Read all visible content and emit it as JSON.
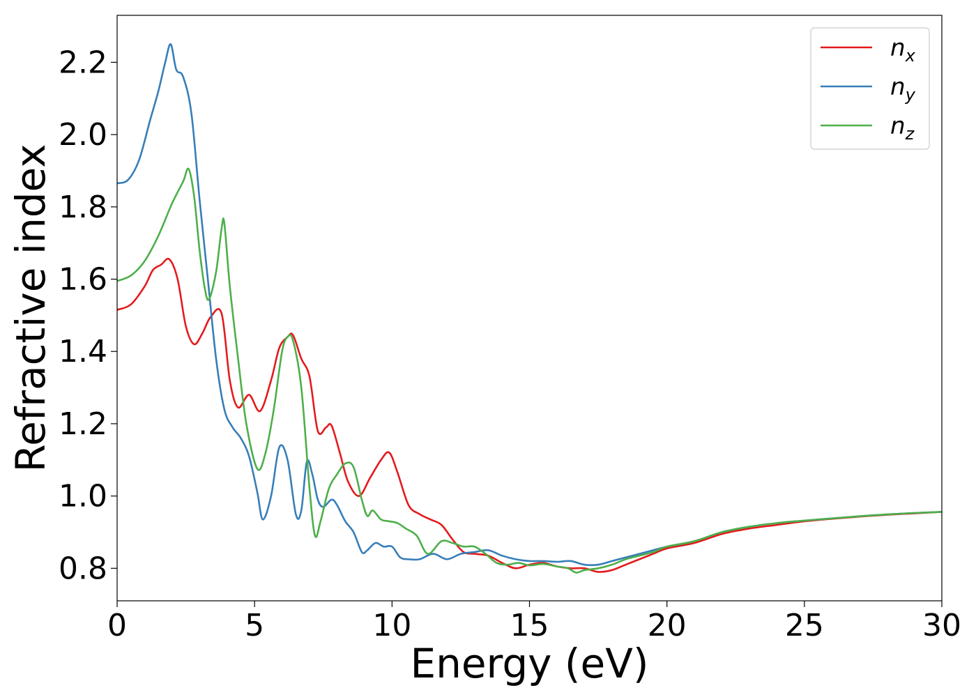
{
  "chart_data": {
    "type": "line",
    "title": "",
    "xlabel": "Energy (eV)",
    "ylabel": "Refractive index",
    "xlim": [
      0,
      30
    ],
    "ylim": [
      0.71,
      2.33
    ],
    "xticks": [
      0,
      5,
      10,
      15,
      20,
      25,
      30
    ],
    "yticks": [
      0.8,
      1.0,
      1.2,
      1.4,
      1.6,
      1.8,
      2.0,
      2.2
    ],
    "xtick_labels": [
      "0",
      "5",
      "10",
      "15",
      "20",
      "25",
      "30"
    ],
    "ytick_labels": [
      "0.8",
      "1.0",
      "1.2",
      "1.4",
      "1.6",
      "1.8",
      "2.0",
      "2.2"
    ],
    "grid": false,
    "legend_position": "top-right",
    "series": [
      {
        "name": "n_x",
        "legend_base": "n",
        "legend_sub": "x",
        "color": "#e41a1c",
        "x": [
          0,
          0.5,
          1.0,
          1.3,
          1.6,
          1.9,
          2.2,
          2.5,
          2.8,
          3.1,
          3.4,
          3.8,
          4.1,
          4.4,
          4.8,
          5.2,
          5.6,
          5.9,
          6.2,
          6.4,
          6.7,
          7.0,
          7.3,
          7.6,
          7.8,
          8.1,
          8.4,
          8.8,
          9.2,
          9.6,
          9.9,
          10.2,
          10.6,
          11.0,
          11.4,
          11.8,
          12.2,
          12.6,
          13.0,
          13.5,
          14.0,
          14.5,
          15.0,
          15.5,
          16.0,
          16.5,
          17.0,
          17.5,
          18.0,
          18.5,
          19.0,
          19.5,
          20.0,
          21.0,
          22.0,
          23.0,
          24.0,
          25.0,
          26.0,
          27.0,
          28.0,
          29.0,
          30.0
        ],
        "y": [
          1.515,
          1.53,
          1.58,
          1.625,
          1.64,
          1.655,
          1.6,
          1.47,
          1.42,
          1.45,
          1.495,
          1.505,
          1.32,
          1.245,
          1.28,
          1.235,
          1.32,
          1.41,
          1.44,
          1.445,
          1.38,
          1.33,
          1.18,
          1.19,
          1.195,
          1.12,
          1.04,
          1.0,
          1.05,
          1.1,
          1.12,
          1.065,
          0.975,
          0.95,
          0.935,
          0.92,
          0.88,
          0.845,
          0.84,
          0.835,
          0.815,
          0.8,
          0.81,
          0.815,
          0.805,
          0.8,
          0.8,
          0.79,
          0.795,
          0.81,
          0.825,
          0.84,
          0.855,
          0.87,
          0.895,
          0.91,
          0.92,
          0.93,
          0.937,
          0.943,
          0.948,
          0.952,
          0.956
        ]
      },
      {
        "name": "n_y",
        "legend_base": "n",
        "legend_sub": "y",
        "color": "#377eb8",
        "x": [
          0,
          0.4,
          0.8,
          1.2,
          1.5,
          1.75,
          1.95,
          2.15,
          2.4,
          2.7,
          3.0,
          3.3,
          3.6,
          3.9,
          4.2,
          4.5,
          4.8,
          5.1,
          5.3,
          5.6,
          5.9,
          6.2,
          6.5,
          6.7,
          6.9,
          7.1,
          7.3,
          7.5,
          7.8,
          8.0,
          8.3,
          8.6,
          8.9,
          9.1,
          9.4,
          9.7,
          10.0,
          10.3,
          10.6,
          11.0,
          11.5,
          12.0,
          12.5,
          13.0,
          13.5,
          14.0,
          14.5,
          15.0,
          15.5,
          16.0,
          16.5,
          17.0,
          17.5,
          18.0,
          18.5,
          19.0,
          19.5,
          20.0,
          21.0,
          22.0,
          23.0,
          24.0,
          25.0,
          26.0,
          27.0,
          28.0,
          29.0,
          30.0
        ],
        "y": [
          1.865,
          1.875,
          1.93,
          2.04,
          2.12,
          2.2,
          2.25,
          2.18,
          2.16,
          2.06,
          1.82,
          1.6,
          1.38,
          1.24,
          1.19,
          1.16,
          1.11,
          1.01,
          0.935,
          1.0,
          1.135,
          1.1,
          0.95,
          0.96,
          1.095,
          1.06,
          0.99,
          0.97,
          0.99,
          0.975,
          0.93,
          0.9,
          0.845,
          0.85,
          0.87,
          0.86,
          0.86,
          0.83,
          0.825,
          0.825,
          0.84,
          0.825,
          0.84,
          0.845,
          0.85,
          0.835,
          0.825,
          0.82,
          0.82,
          0.818,
          0.82,
          0.81,
          0.81,
          0.82,
          0.83,
          0.84,
          0.85,
          0.86,
          0.875,
          0.9,
          0.915,
          0.925,
          0.932,
          0.938,
          0.944,
          0.949,
          0.953,
          0.956
        ]
      },
      {
        "name": "n_z",
        "legend_base": "n",
        "legend_sub": "z",
        "color": "#4daf4a",
        "x": [
          0,
          0.5,
          1.0,
          1.5,
          2.0,
          2.4,
          2.6,
          2.8,
          3.0,
          3.2,
          3.35,
          3.6,
          3.8,
          3.9,
          4.1,
          4.4,
          4.7,
          5.1,
          5.4,
          5.7,
          6.0,
          6.2,
          6.4,
          6.7,
          7.0,
          7.2,
          7.4,
          7.7,
          8.0,
          8.3,
          8.6,
          8.9,
          9.1,
          9.3,
          9.6,
          9.9,
          10.2,
          10.5,
          10.9,
          11.3,
          11.8,
          12.2,
          12.6,
          13.0,
          13.4,
          13.8,
          14.2,
          14.6,
          15.0,
          15.5,
          16.0,
          16.4,
          16.7,
          17.0,
          17.5,
          18.0,
          18.5,
          19.0,
          19.5,
          20.0,
          21.0,
          22.0,
          23.0,
          24.0,
          25.0,
          26.0,
          27.0,
          28.0,
          29.0,
          30.0
        ],
        "y": [
          1.595,
          1.61,
          1.65,
          1.72,
          1.81,
          1.87,
          1.905,
          1.83,
          1.68,
          1.57,
          1.545,
          1.62,
          1.74,
          1.755,
          1.58,
          1.38,
          1.2,
          1.075,
          1.12,
          1.24,
          1.4,
          1.44,
          1.43,
          1.3,
          1.02,
          0.89,
          0.93,
          1.02,
          1.06,
          1.09,
          1.08,
          0.99,
          0.945,
          0.96,
          0.935,
          0.93,
          0.925,
          0.91,
          0.89,
          0.84,
          0.875,
          0.87,
          0.86,
          0.86,
          0.84,
          0.815,
          0.81,
          0.815,
          0.808,
          0.812,
          0.805,
          0.8,
          0.788,
          0.795,
          0.8,
          0.81,
          0.825,
          0.835,
          0.845,
          0.86,
          0.875,
          0.9,
          0.915,
          0.925,
          0.932,
          0.938,
          0.944,
          0.949,
          0.953,
          0.956
        ]
      }
    ]
  }
}
